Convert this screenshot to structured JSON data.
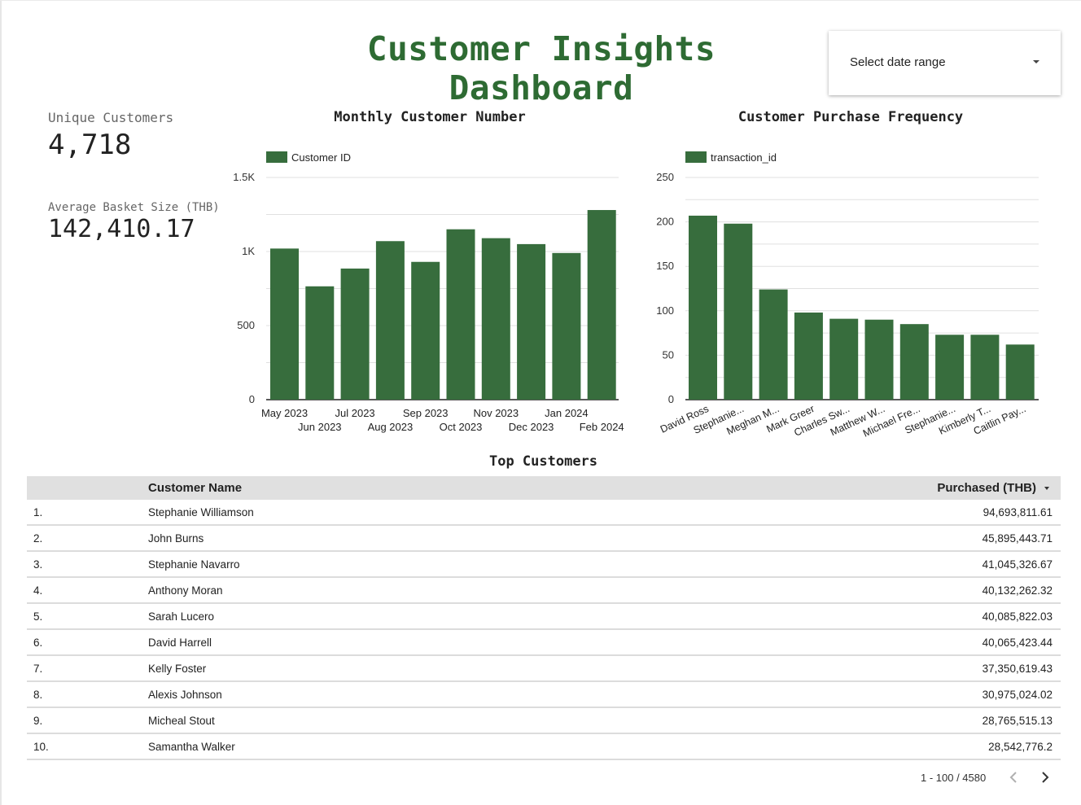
{
  "header": {
    "title": "Customer Insights Dashboard",
    "date_picker_label": "Select date range"
  },
  "kpis": [
    {
      "label": "Unique Customers",
      "value": "4,718"
    },
    {
      "label": "Average Basket Size (THB)",
      "value": "142,410.17"
    }
  ],
  "colors": {
    "accent": "#2e6b33",
    "bar": "#376d3d"
  },
  "chart_data": [
    {
      "type": "bar",
      "title": "Monthly Customer Number",
      "legend": "top-left",
      "categories": [
        "May 2023",
        "Jun 2023",
        "Jul 2023",
        "Aug 2023",
        "Sep 2023",
        "Oct 2023",
        "Nov 2023",
        "Dec 2023",
        "Jan 2024",
        "Feb 2024"
      ],
      "series": [
        {
          "name": "Customer ID",
          "values": [
            1020,
            765,
            885,
            1070,
            930,
            1150,
            1090,
            1050,
            990,
            1280
          ]
        }
      ],
      "yticks": [
        0,
        500,
        1000,
        1500
      ],
      "ytick_labels": [
        "0",
        "500",
        "1K",
        "1.5K"
      ],
      "ylim": [
        0,
        1500
      ],
      "grid": true
    },
    {
      "type": "bar",
      "title": "Customer Purchase Frequency",
      "legend": "top-left",
      "categories": [
        "David Ross",
        "Stephanie...",
        "Meghan M...",
        "Mark Greer",
        "Charles Sw...",
        "Matthew W...",
        "Michael Fre...",
        "Stephanie...",
        "Kimberly T...",
        "Caitlin Pay..."
      ],
      "series": [
        {
          "name": "transaction_id",
          "values": [
            207,
            198,
            124,
            98,
            91,
            90,
            85,
            73,
            73,
            62
          ]
        }
      ],
      "yticks": [
        0,
        50,
        100,
        150,
        200,
        250
      ],
      "ylim": [
        0,
        250
      ],
      "grid": true
    }
  ],
  "table": {
    "title": "Top Customers",
    "columns": [
      "Customer Name",
      "Purchased (THB)"
    ],
    "rows": [
      {
        "idx": "1.",
        "name": "Stephanie Williamson",
        "value": "94,693,811.61"
      },
      {
        "idx": "2.",
        "name": "John Burns",
        "value": "45,895,443.71"
      },
      {
        "idx": "3.",
        "name": "Stephanie Navarro",
        "value": "41,045,326.67"
      },
      {
        "idx": "4.",
        "name": "Anthony Moran",
        "value": "40,132,262.32"
      },
      {
        "idx": "5.",
        "name": "Sarah Lucero",
        "value": "40,085,822.03"
      },
      {
        "idx": "6.",
        "name": "David Harrell",
        "value": "40,065,423.44"
      },
      {
        "idx": "7.",
        "name": "Kelly Foster",
        "value": "37,350,619.43"
      },
      {
        "idx": "8.",
        "name": "Alexis Johnson",
        "value": "30,975,024.02"
      },
      {
        "idx": "9.",
        "name": "Micheal Stout",
        "value": "28,765,515.13"
      },
      {
        "idx": "10.",
        "name": "Samantha Walker",
        "value": "28,542,776.2"
      }
    ],
    "pagination": "1 - 100 / 4580"
  }
}
